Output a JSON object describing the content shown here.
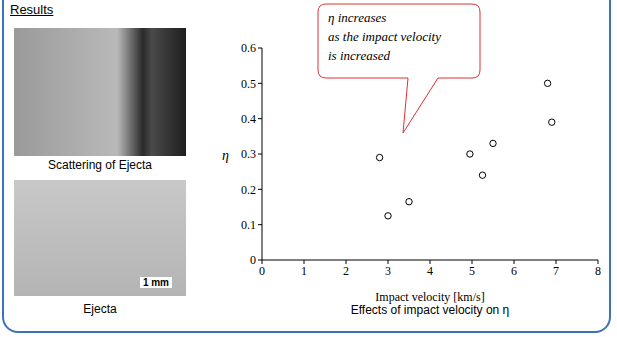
{
  "slide": {
    "heading": "Results",
    "images": [
      {
        "caption": "Scattering of Ejecta"
      },
      {
        "caption": "Ejecta",
        "scale_bar": "1 mm"
      }
    ]
  },
  "chart_data": {
    "type": "scatter",
    "title": "Effects of impact velocity on η",
    "x_label": "Impact velocity [km/s]",
    "y_label": "η",
    "annotation": [
      "η increases",
      "as the impact velocity",
      "is increased"
    ],
    "x": [
      2.8,
      3.0,
      3.5,
      4.95,
      5.25,
      5.5,
      6.8,
      6.9
    ],
    "values": [
      0.29,
      0.125,
      0.165,
      0.3,
      0.24,
      0.33,
      0.5,
      0.39
    ],
    "color": "#000000",
    "marker": "circle",
    "xlim": [
      0,
      8
    ],
    "ylim": [
      0,
      0.6
    ],
    "xticks": [
      0,
      1,
      2,
      3,
      4,
      5,
      6,
      7,
      8
    ],
    "yticks": [
      0,
      0.1,
      0.2,
      0.3,
      0.4,
      0.5,
      0.6
    ],
    "grid": false
  }
}
